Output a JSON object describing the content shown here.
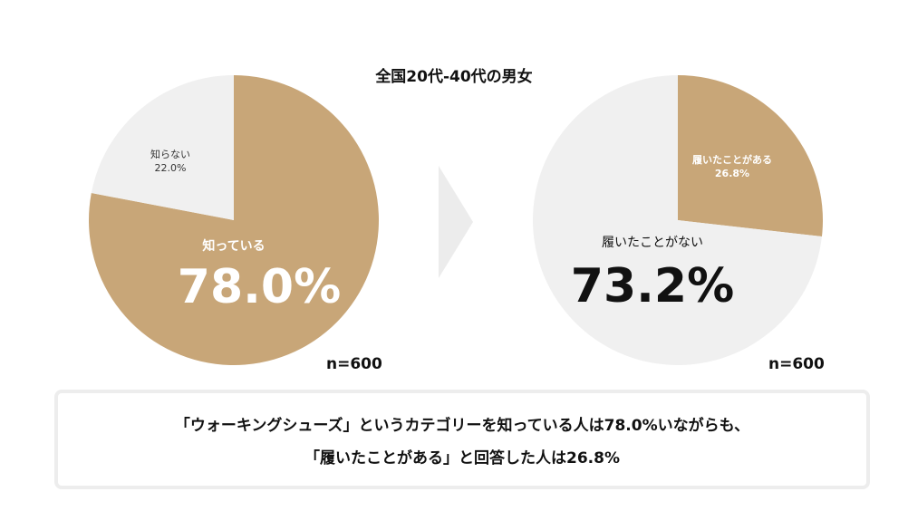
{
  "title": "全国20代-40代の男女",
  "colors": {
    "primary": "#c8a678",
    "secondary": "#f0f0f0",
    "arrow": "#ececec"
  },
  "chart_data": [
    {
      "type": "pie",
      "slices": [
        {
          "label": "知っている",
          "value": 78.0,
          "value_label": "78.0%",
          "color": "#c8a678"
        },
        {
          "label": "知らない",
          "value": 22.0,
          "value_label": "22.0%",
          "color": "#f0f0f0"
        }
      ],
      "n_label": "n=600"
    },
    {
      "type": "pie",
      "slices": [
        {
          "label": "履いたことがある",
          "value": 26.8,
          "value_label": "26.8%",
          "color": "#c8a678"
        },
        {
          "label": "履いたことがない",
          "value": 73.2,
          "value_label": "73.2%",
          "color": "#f0f0f0"
        }
      ],
      "n_label": "n=600"
    }
  ],
  "summary": {
    "line1": "「ウォーキングシューズ」というカテゴリーを知っている人は78.0%いながらも、",
    "line2": "「履いたことがある」と回答した人は26.8%"
  }
}
